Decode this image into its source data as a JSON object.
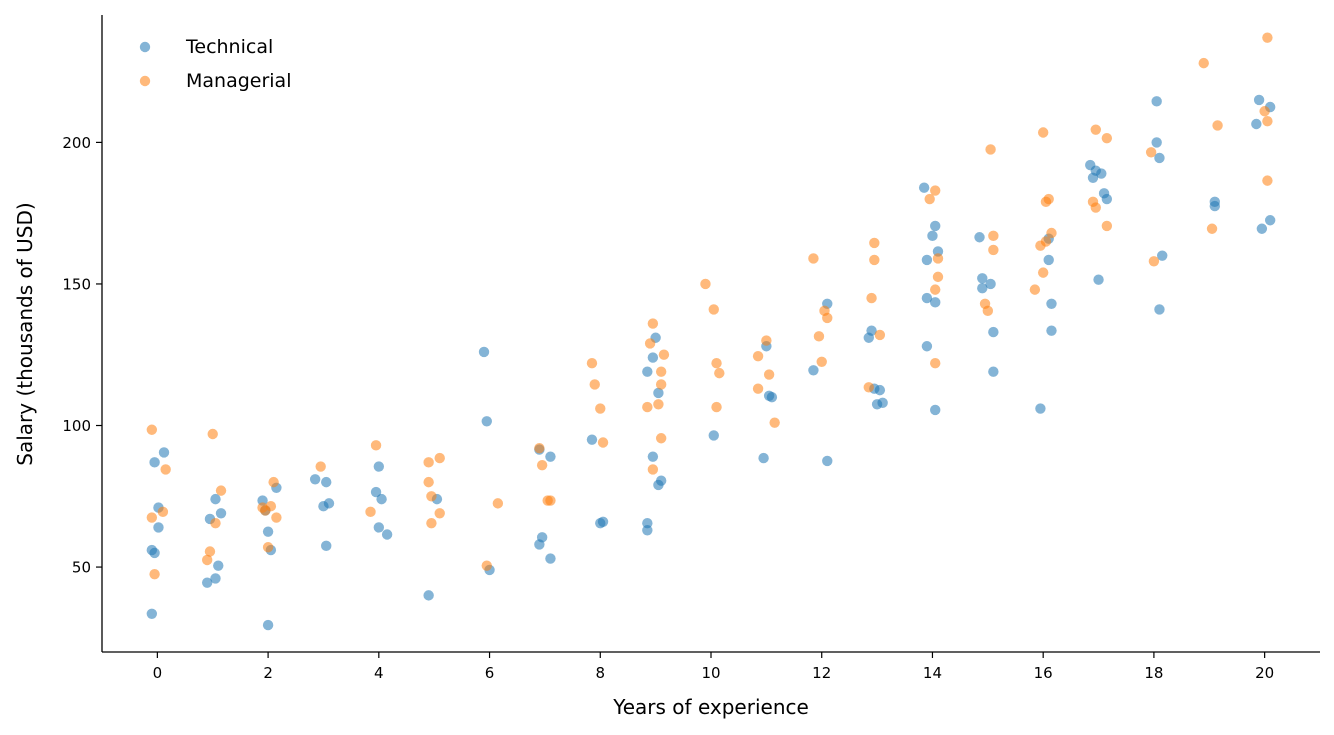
{
  "chart_data": {
    "type": "scatter",
    "title": "",
    "xlabel": "Years of experience",
    "ylabel": "Salary (thousands of USD)",
    "xlim": [
      -1,
      21
    ],
    "ylim": [
      20,
      245
    ],
    "xticks": [
      0,
      2,
      4,
      6,
      8,
      10,
      12,
      14,
      16,
      18,
      20
    ],
    "yticks": [
      50,
      100,
      150,
      200
    ],
    "grid": false,
    "legend_position": "top-left",
    "series": [
      {
        "name": "Technical",
        "color": "#1f77b4",
        "points": [
          [
            -0.1,
            33.5
          ],
          [
            -0.1,
            56
          ],
          [
            -0.05,
            55
          ],
          [
            -0.05,
            87
          ],
          [
            0.02,
            71
          ],
          [
            0.02,
            64
          ],
          [
            0.12,
            90.5
          ],
          [
            0.9,
            44.5
          ],
          [
            0.95,
            67
          ],
          [
            1.05,
            74
          ],
          [
            1.05,
            46
          ],
          [
            1.1,
            50.5
          ],
          [
            1.15,
            69
          ],
          [
            1.9,
            73.5
          ],
          [
            1.95,
            70
          ],
          [
            2.0,
            29.5
          ],
          [
            2.0,
            62.5
          ],
          [
            2.05,
            56
          ],
          [
            2.15,
            78
          ],
          [
            2.85,
            81
          ],
          [
            3.0,
            71.5
          ],
          [
            3.05,
            57.5
          ],
          [
            3.05,
            80
          ],
          [
            3.1,
            72.5
          ],
          [
            3.95,
            76.5
          ],
          [
            4.0,
            64
          ],
          [
            4.0,
            85.5
          ],
          [
            4.05,
            74
          ],
          [
            4.15,
            61.5
          ],
          [
            4.9,
            40
          ],
          [
            5.05,
            74
          ],
          [
            5.9,
            126
          ],
          [
            5.95,
            101.5
          ],
          [
            6.0,
            49
          ],
          [
            6.9,
            91.5
          ],
          [
            6.9,
            58
          ],
          [
            6.95,
            60.5
          ],
          [
            7.1,
            89
          ],
          [
            7.1,
            53
          ],
          [
            7.85,
            95
          ],
          [
            8.0,
            65.5
          ],
          [
            8.05,
            66
          ],
          [
            8.85,
            119
          ],
          [
            8.85,
            65.5
          ],
          [
            8.85,
            63
          ],
          [
            8.95,
            124
          ],
          [
            8.95,
            89
          ],
          [
            9.0,
            131
          ],
          [
            9.05,
            111.5
          ],
          [
            9.05,
            79
          ],
          [
            9.1,
            80.5
          ],
          [
            10.05,
            96.5
          ],
          [
            10.95,
            88.5
          ],
          [
            11.0,
            128
          ],
          [
            11.05,
            110.5
          ],
          [
            11.1,
            110
          ],
          [
            11.85,
            119.5
          ],
          [
            12.1,
            143
          ],
          [
            12.1,
            87.5
          ],
          [
            12.85,
            131
          ],
          [
            12.9,
            133.5
          ],
          [
            12.95,
            113
          ],
          [
            13.0,
            107.5
          ],
          [
            13.05,
            112.5
          ],
          [
            13.1,
            108
          ],
          [
            13.85,
            184
          ],
          [
            13.9,
            158.5
          ],
          [
            13.9,
            128
          ],
          [
            13.9,
            145
          ],
          [
            14.0,
            167
          ],
          [
            14.05,
            170.5
          ],
          [
            14.05,
            143.5
          ],
          [
            14.05,
            105.5
          ],
          [
            14.1,
            161.5
          ],
          [
            14.85,
            166.5
          ],
          [
            14.9,
            152
          ],
          [
            14.9,
            148.5
          ],
          [
            15.05,
            150
          ],
          [
            15.1,
            133
          ],
          [
            15.1,
            119
          ],
          [
            15.95,
            106
          ],
          [
            16.1,
            158.5
          ],
          [
            16.1,
            166
          ],
          [
            16.15,
            143
          ],
          [
            16.15,
            133.5
          ],
          [
            16.85,
            192
          ],
          [
            16.9,
            187.5
          ],
          [
            16.95,
            190
          ],
          [
            17.0,
            151.5
          ],
          [
            17.05,
            189
          ],
          [
            17.1,
            182
          ],
          [
            17.15,
            180
          ],
          [
            18.05,
            214.5
          ],
          [
            18.05,
            200
          ],
          [
            18.1,
            194.5
          ],
          [
            18.1,
            141
          ],
          [
            18.15,
            160
          ],
          [
            19.1,
            179
          ],
          [
            19.1,
            177.5
          ],
          [
            19.85,
            206.5
          ],
          [
            19.9,
            215
          ],
          [
            19.95,
            169.5
          ],
          [
            20.1,
            212.5
          ],
          [
            20.1,
            172.5
          ]
        ]
      },
      {
        "name": "Managerial",
        "color": "#ff7f0e",
        "points": [
          [
            -0.1,
            98.5
          ],
          [
            -0.1,
            67.5
          ],
          [
            -0.05,
            47.5
          ],
          [
            0.1,
            69.5
          ],
          [
            0.15,
            84.5
          ],
          [
            0.9,
            52.5
          ],
          [
            0.95,
            55.5
          ],
          [
            1.0,
            97
          ],
          [
            1.05,
            65.5
          ],
          [
            1.15,
            77
          ],
          [
            1.9,
            71
          ],
          [
            1.95,
            70
          ],
          [
            2.0,
            57
          ],
          [
            2.05,
            71.5
          ],
          [
            2.1,
            80
          ],
          [
            2.15,
            67.5
          ],
          [
            2.95,
            85.5
          ],
          [
            3.85,
            69.5
          ],
          [
            3.95,
            93
          ],
          [
            4.9,
            87
          ],
          [
            4.9,
            80
          ],
          [
            4.95,
            75
          ],
          [
            4.95,
            65.5
          ],
          [
            5.1,
            88.5
          ],
          [
            5.1,
            69
          ],
          [
            5.95,
            50.5
          ],
          [
            6.15,
            72.5
          ],
          [
            6.9,
            92
          ],
          [
            6.95,
            86
          ],
          [
            7.05,
            73.5
          ],
          [
            7.1,
            73.5
          ],
          [
            7.85,
            122
          ],
          [
            7.9,
            114.5
          ],
          [
            8.0,
            106
          ],
          [
            8.05,
            94
          ],
          [
            8.85,
            106.5
          ],
          [
            8.9,
            129
          ],
          [
            8.95,
            136
          ],
          [
            8.95,
            84.5
          ],
          [
            9.05,
            107.5
          ],
          [
            9.1,
            119
          ],
          [
            9.1,
            114.5
          ],
          [
            9.1,
            95.5
          ],
          [
            9.15,
            125
          ],
          [
            9.9,
            150
          ],
          [
            10.05,
            141
          ],
          [
            10.1,
            106.5
          ],
          [
            10.1,
            122
          ],
          [
            10.15,
            118.5
          ],
          [
            10.85,
            124.5
          ],
          [
            10.85,
            113
          ],
          [
            11.0,
            130
          ],
          [
            11.05,
            118
          ],
          [
            11.15,
            101
          ],
          [
            11.85,
            159
          ],
          [
            11.95,
            131.5
          ],
          [
            12.0,
            122.5
          ],
          [
            12.05,
            140.5
          ],
          [
            12.1,
            138
          ],
          [
            12.85,
            113.5
          ],
          [
            12.9,
            145
          ],
          [
            12.95,
            164.5
          ],
          [
            12.95,
            158.5
          ],
          [
            13.05,
            132
          ],
          [
            13.95,
            180
          ],
          [
            14.05,
            183
          ],
          [
            14.05,
            148
          ],
          [
            14.05,
            122
          ],
          [
            14.1,
            152.5
          ],
          [
            14.1,
            159
          ],
          [
            14.95,
            143
          ],
          [
            15.0,
            140.5
          ],
          [
            15.05,
            197.5
          ],
          [
            15.1,
            167
          ],
          [
            15.1,
            162
          ],
          [
            15.85,
            148
          ],
          [
            15.95,
            163.5
          ],
          [
            16.0,
            203.5
          ],
          [
            16.0,
            154
          ],
          [
            16.05,
            179
          ],
          [
            16.05,
            165
          ],
          [
            16.1,
            180
          ],
          [
            16.15,
            168
          ],
          [
            16.9,
            179
          ],
          [
            16.95,
            177
          ],
          [
            16.95,
            204.5
          ],
          [
            17.15,
            201.5
          ],
          [
            17.15,
            170.5
          ],
          [
            17.95,
            196.5
          ],
          [
            18.0,
            158
          ],
          [
            18.9,
            228
          ],
          [
            19.05,
            169.5
          ],
          [
            19.15,
            206
          ],
          [
            20.0,
            211
          ],
          [
            20.05,
            237
          ],
          [
            20.05,
            207.5
          ],
          [
            20.05,
            186.5
          ]
        ]
      }
    ]
  }
}
